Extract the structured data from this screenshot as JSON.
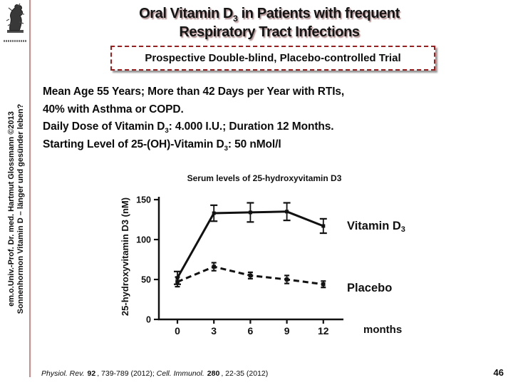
{
  "title": {
    "line1_part1": "Oral Vitamin D",
    "line1_sub": "3",
    "line1_part2": " in Patients with frequent",
    "line2": "Respiratory Tract Infections"
  },
  "subtitle_box": "Prospective Double-blind, Placebo-controlled Trial",
  "body": {
    "line1": "Mean Age 55 Years; More than 42 Days per Year with RTIs,",
    "line2": "40% with Asthma or COPD.",
    "line3a": "Daily Dose of Vitamin D",
    "line3sub": "3",
    "line3b": ": 4.000 I.U.; Duration 12 Months.",
    "line4a": "Starting Level of 25-(OH)-Vitamin D",
    "line4sub": "3",
    "line4b": ": 50 nMol/l"
  },
  "sidebar": {
    "credit_line1": "em.o.Univ.-Prof. Dr. med. Hartmut Glossmann ©2013",
    "credit_line2": "Sonnenhormon Vitamin D – länger und gesünder leben?"
  },
  "footer": {
    "citation": {
      "journal1": "Physiol. Rev.",
      "vol1": "92",
      "rest1": ", 739-789 (2012); ",
      "journal2": "Cell. Immunol.",
      "vol2": "280",
      "rest2": ", 22-35 (2012)"
    },
    "page_number": "46"
  },
  "colors": {
    "divider_pink": "#cc8c8c",
    "dashed_border_red": "#9c1f1f",
    "legend_blue": "#0a0acd",
    "text_black": "#111111",
    "title_shadow": "#9b7272"
  },
  "chart_data": {
    "type": "line",
    "title": "Serum levels of 25-hydroxyvitamin D3",
    "xlabel": "months",
    "ylabel": "25-hydroxyvitamin D3 (nM)",
    "x": [
      0,
      3,
      6,
      9,
      12
    ],
    "xticks": [
      "0",
      "3",
      "6",
      "9",
      "12"
    ],
    "yticks": [
      0,
      50,
      100,
      150
    ],
    "ylim": [
      0,
      150
    ],
    "grid": false,
    "legend_position": "right",
    "series": [
      {
        "name": "Vitamin D3",
        "line_style": "solid",
        "color": "#111111",
        "values": [
          52,
          133,
          134,
          135,
          117
        ],
        "errors": [
          8,
          10,
          12,
          11,
          9
        ],
        "label_text": "Vitamin D",
        "label_sub": "3",
        "label_color": "#0a0acd"
      },
      {
        "name": "Placebo",
        "line_style": "dashed",
        "color": "#111111",
        "values": [
          47,
          66,
          55,
          50,
          44
        ],
        "errors": [
          6,
          5,
          4,
          5,
          4
        ],
        "label_text": "Placebo",
        "label_sub": "",
        "label_color": "#111111"
      }
    ]
  }
}
